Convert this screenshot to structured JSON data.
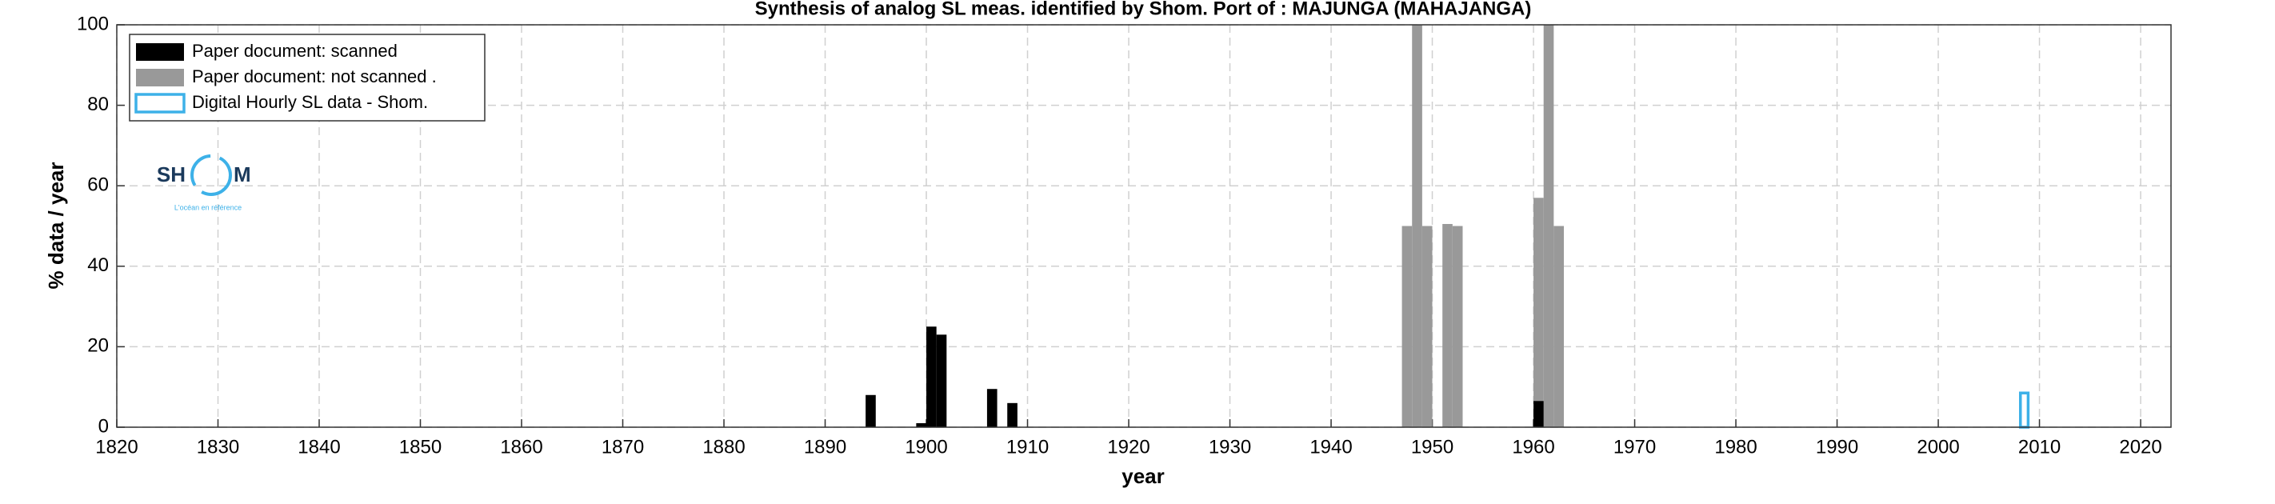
{
  "chart_data": {
    "type": "bar",
    "title": "Synthesis of analog SL meas. identified by Shom. Port of : MAJUNGA (MAHAJANGA)",
    "xlabel": "year",
    "ylabel": "% data / year",
    "xlim": [
      1820,
      2023
    ],
    "xticks": [
      1820,
      1830,
      1840,
      1850,
      1860,
      1870,
      1880,
      1890,
      1900,
      1910,
      1920,
      1930,
      1940,
      1950,
      1960,
      1970,
      1980,
      1990,
      2000,
      2010,
      2020
    ],
    "ylim": [
      0,
      100
    ],
    "yticks": [
      0,
      20,
      40,
      60,
      80,
      100
    ],
    "grid": true,
    "legend": "upper left",
    "series": [
      {
        "name": "Paper document: not scanned   .",
        "color": "#999999",
        "style": "filled",
        "x": [
          1947,
          1948,
          1949,
          1951,
          1952,
          1960,
          1961,
          1962
        ],
        "values": [
          50,
          100,
          50,
          50.5,
          50,
          57,
          100,
          50
        ]
      },
      {
        "name": "Paper document: scanned",
        "color": "#000000",
        "style": "filled",
        "x": [
          1894,
          1899,
          1900,
          1901,
          1906,
          1908,
          1960
        ],
        "values": [
          8,
          1,
          25,
          23,
          9.5,
          6,
          6.5
        ]
      },
      {
        "name": "Digital Hourly SL data - Shom.",
        "color": "#3db1e8",
        "style": "outline",
        "x": [
          2008
        ],
        "values": [
          8.5
        ]
      }
    ]
  },
  "logo": {
    "left": "SH",
    "right": "M",
    "tagline": "L'océan en référence"
  }
}
